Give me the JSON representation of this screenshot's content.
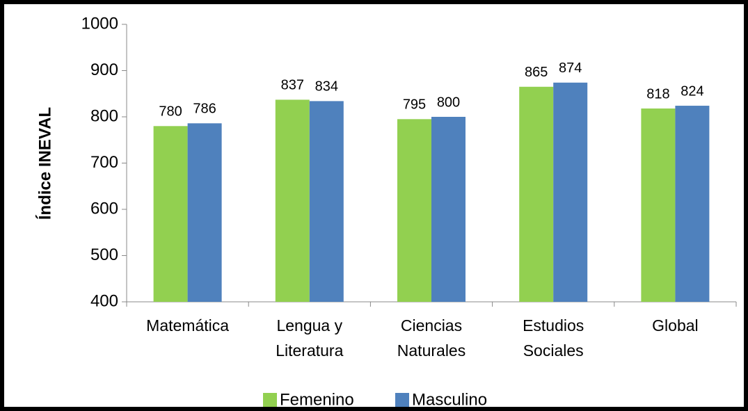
{
  "chart_data": {
    "type": "bar",
    "y_label": "Índice INEVAL",
    "categories": [
      "Matemática",
      "Lengua y Literatura",
      "Ciencias Naturales",
      "Estudios Sociales",
      "Global"
    ],
    "series": [
      {
        "name": "Femenino",
        "color": "#92d050",
        "values": [
          780,
          837,
          795,
          865,
          818
        ]
      },
      {
        "name": "Masculino",
        "color": "#4f81bd",
        "values": [
          786,
          834,
          800,
          874,
          824
        ]
      }
    ],
    "ylim": [
      400,
      1000
    ],
    "yticks": [
      400,
      500,
      600,
      700,
      800,
      900,
      1000
    ],
    "grid": false,
    "legend": "bottom"
  }
}
